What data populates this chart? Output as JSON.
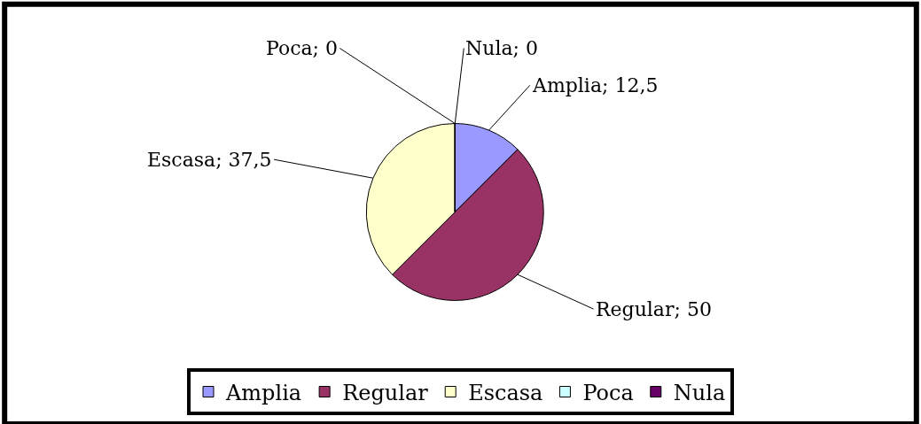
{
  "chart_data": {
    "type": "pie",
    "categories": [
      "Amplia",
      "Regular",
      "Escasa",
      "Poca",
      "Nula"
    ],
    "values": [
      12.5,
      50,
      37.5,
      0,
      0
    ],
    "colors": [
      "#9999ff",
      "#993366",
      "#ffffcc",
      "#ccffff",
      "#660066"
    ],
    "value_labels": [
      "Amplia; 12,5",
      "Regular; 50",
      "Escasa; 37,5",
      "Poca; 0",
      "Nula; 0"
    ],
    "legend": "bottom"
  }
}
